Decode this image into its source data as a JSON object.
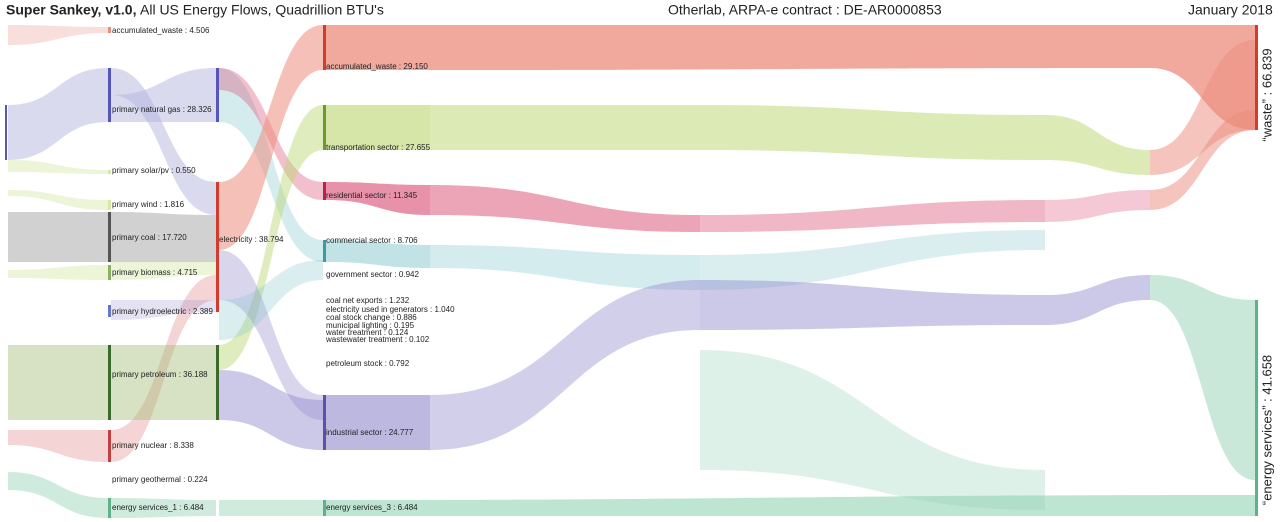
{
  "header": {
    "title": "Super Sankey, v1.0,",
    "subtitle": "All US Energy Flows, Quadrillion BTU's",
    "credit": "Otherlab, ARPA-e contract : DE-AR0000853",
    "date": "January 2018"
  },
  "columns": [
    {
      "nodes": [
        "accumulated_waste : 4.506",
        "primary natural gas : 28.326",
        "primary solar/pv : 0.550",
        "primary wind : 1.816",
        "primary coal : 17.720",
        "primary biomass : 4.715",
        "primary hydroelectric : 2.389",
        "primary petroleum : 36.188",
        "primary nuclear : 8.338",
        "primary geothermal : 0.224",
        "energy services_1 : 6.484"
      ]
    },
    {
      "nodes": [
        "electricity : 38.794"
      ]
    },
    {
      "nodes": [
        "accumulated_waste : 29.150",
        "transportation sector : 27.655",
        "residential sector : 11.345",
        "commercial sector : 8.706",
        "government sector : 0.942",
        "coal net exports : 1.232",
        "electricity used in generators : 1.040",
        "coal stock change : 0.886",
        "municipal lighting : 0.195",
        "water treatment : 0.124",
        "wastewater treatment : 0.102",
        "petroleum stock : 0.792",
        "industrial sector : 24.777",
        "energy services_3 : 6.484"
      ]
    }
  ],
  "outputs": [
    "“waste” : 66.839",
    "“energy services” : 41.658"
  ]
}
